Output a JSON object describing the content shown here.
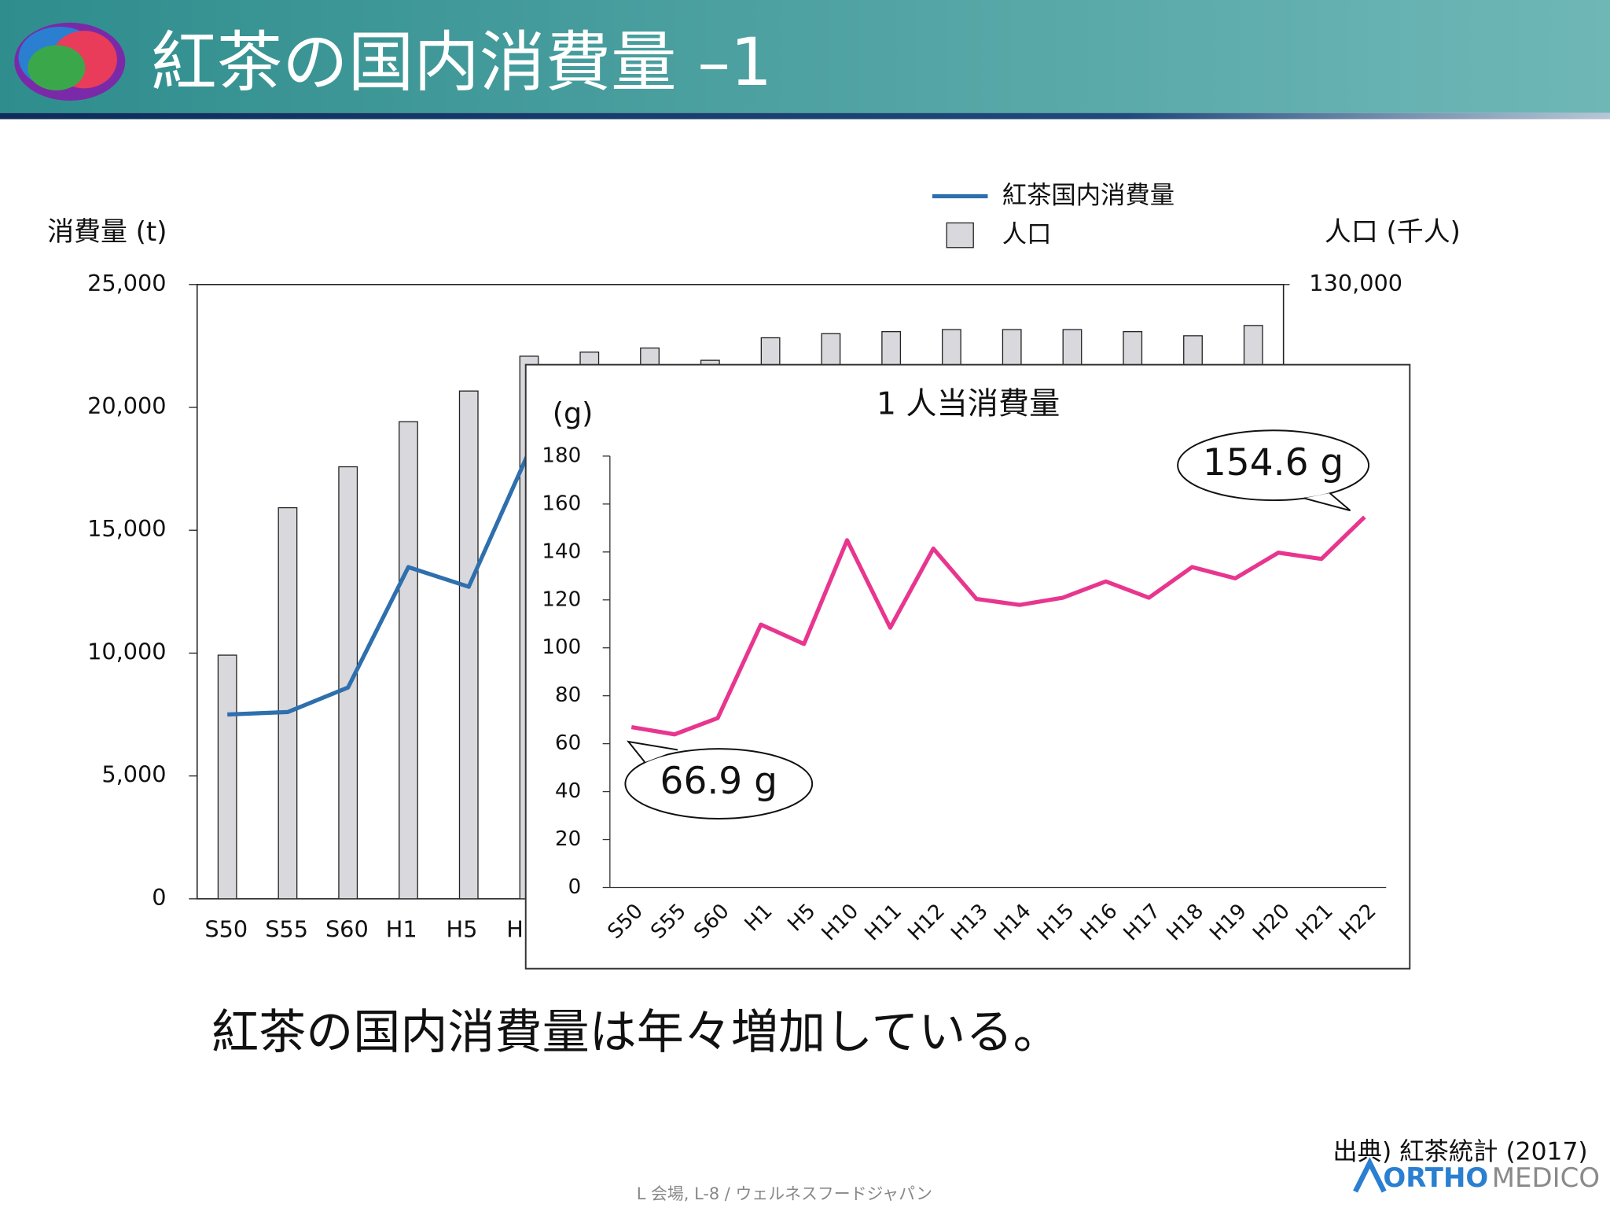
{
  "header": {
    "title": "紅茶の国内消費量 –1"
  },
  "chart_data": [
    {
      "type": "combo",
      "y_label": "消費量 (t)",
      "y2_label": "人口 (千人)",
      "categories": [
        "S50",
        "S55",
        "S60",
        "H1",
        "H5",
        "H",
        null,
        null,
        null,
        null,
        null,
        null,
        null,
        null,
        null,
        null,
        null,
        null
      ],
      "series": [
        {
          "name": "紅茶国内消費量",
          "type": "line",
          "color": "#2e6fad",
          "values": [
            7500,
            7600,
            8600,
            13500,
            12700,
            18200,
            null,
            null,
            null,
            null,
            null,
            null,
            null,
            null,
            null,
            null,
            null,
            null
          ]
        },
        {
          "name": "人口",
          "type": "bar",
          "axis": "y2",
          "color": "#d9d8dc",
          "values": [
            111900,
            119100,
            121100,
            123300,
            124800,
            126500,
            126700,
            126900,
            126300,
            127400,
            127600,
            127700,
            127800,
            127800,
            127800,
            127700,
            127500,
            128000
          ]
        }
      ],
      "ylim": [
        0,
        25000
      ],
      "yticks": [
        0,
        {
          "value": 5000,
          "label": "5,000"
        },
        {
          "value": 10000,
          "label": "10,000"
        },
        {
          "value": 15000,
          "label": "15,000"
        },
        {
          "value": 20000,
          "label": "20,000"
        },
        {
          "value": 25000,
          "label": "25,000"
        }
      ],
      "y2lim": [
        100000,
        130000
      ],
      "y2ticks": [
        {
          "value": 130000,
          "label": "130,000"
        }
      ]
    },
    {
      "type": "line",
      "title": "1 人当消費量",
      "y_label": "(g)",
      "categories": [
        "S50",
        "S55",
        "S60",
        "H1",
        "H5",
        "H10",
        "H11",
        "H12",
        "H13",
        "H14",
        "H15",
        "H16",
        "H17",
        "H18",
        "H19",
        "H20",
        "H21",
        "H22"
      ],
      "values": [
        66.9,
        63.9,
        70.7,
        109.7,
        101.6,
        144.9,
        108.4,
        141.4,
        120.4,
        117.9,
        120.9,
        127.7,
        120.9,
        133.7,
        129.0,
        139.7,
        137.1,
        154.6
      ],
      "color": "#e8368f",
      "ylim": [
        0,
        180
      ],
      "yticks": [
        0,
        20,
        40,
        60,
        80,
        100,
        120,
        140,
        160,
        180
      ],
      "annotations": [
        "66.9 g",
        "154.6 g"
      ]
    }
  ],
  "conclusion": "紅茶の国内消費量は年々増加している。",
  "source": "出典) 紅茶統計 (2017)",
  "logo": [
    "ORTHO",
    "MEDICO"
  ],
  "footer": "L 会場, L-8 / ウェルネスフードジャパン"
}
